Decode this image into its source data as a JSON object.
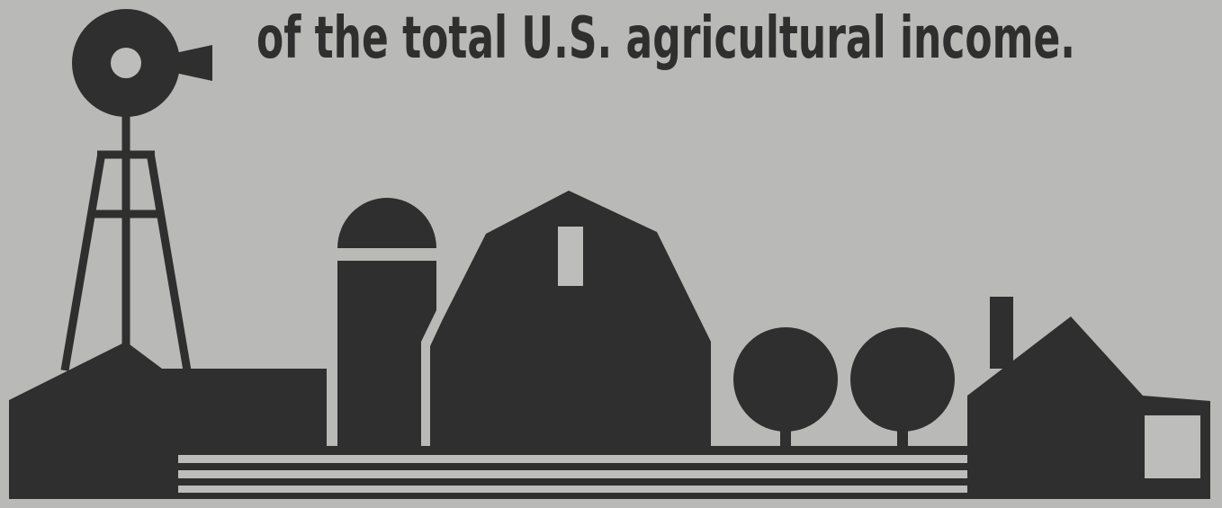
{
  "headline": "of the total U.S. agricultural income."
}
